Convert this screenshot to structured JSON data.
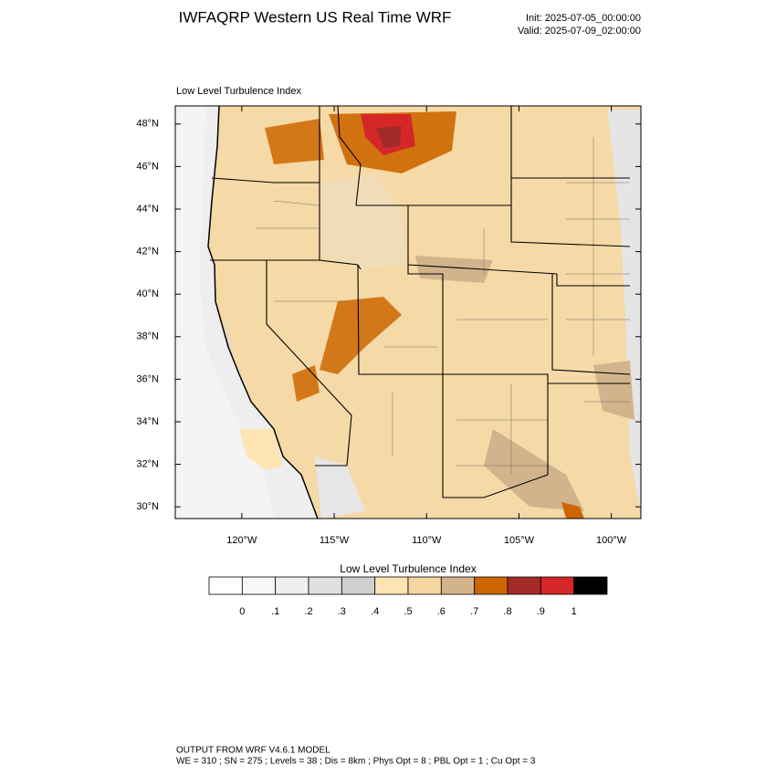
{
  "header": {
    "title": "IWFAQRP Western US Real Time WRF",
    "init": "Init: 2025-07-05_00:00:00",
    "valid": "Valid: 2025-07-09_02:00:00"
  },
  "map": {
    "title": "Low Level Turbulence Index",
    "xlim": [
      -123.6,
      -98.4
    ],
    "ylim": [
      29.45,
      48.85
    ],
    "xticks": [
      {
        "value": -120,
        "label": "120°W"
      },
      {
        "value": -115,
        "label": "115°W"
      },
      {
        "value": -110,
        "label": "110°W"
      },
      {
        "value": -105,
        "label": "105°W"
      },
      {
        "value": -100,
        "label": "100°W"
      }
    ],
    "yticks": [
      {
        "value": 30,
        "label": "30°N"
      },
      {
        "value": 32,
        "label": "32°N"
      },
      {
        "value": 34,
        "label": "34°N"
      },
      {
        "value": 36,
        "label": "36°N"
      },
      {
        "value": 38,
        "label": "38°N"
      },
      {
        "value": 40,
        "label": "40°N"
      },
      {
        "value": 42,
        "label": "42°N"
      },
      {
        "value": 44,
        "label": "44°N"
      },
      {
        "value": 46,
        "label": "46°N"
      },
      {
        "value": 48,
        "label": "48°N"
      }
    ]
  },
  "colorbar": {
    "title": "Low Level Turbulence Index",
    "colors": [
      "#ffffff",
      "#f7f7f7",
      "#efefef",
      "#e0e0e0",
      "#cfcfcf",
      "#ffe4b4",
      "#f5d5a0",
      "#d2b48c",
      "#cd6600",
      "#a52a2a",
      "#d62728",
      "#000000"
    ],
    "levels": [
      0,
      {
        "value": 0.1,
        "label": ".1"
      },
      {
        "value": 0.2,
        "label": ".2"
      },
      {
        "value": 0.3,
        "label": ".3"
      },
      {
        "value": 0.4,
        "label": ".4"
      },
      {
        "value": 0.5,
        "label": ".5"
      },
      {
        "value": 0.6,
        "label": ".6"
      },
      {
        "value": 0.7,
        "label": ".7"
      },
      {
        "value": 0.8,
        "label": ".8"
      },
      {
        "value": 0.9,
        "label": ".9"
      },
      1
    ]
  },
  "footer": {
    "line1": "OUTPUT FROM WRF V4.6.1 MODEL",
    "line2": "WE = 310 ; SN = 275 ; Levels = 38 ; Dis = 8km ; Phys Opt = 8 ; PBL Opt = 1 ; Cu Opt = 3"
  }
}
